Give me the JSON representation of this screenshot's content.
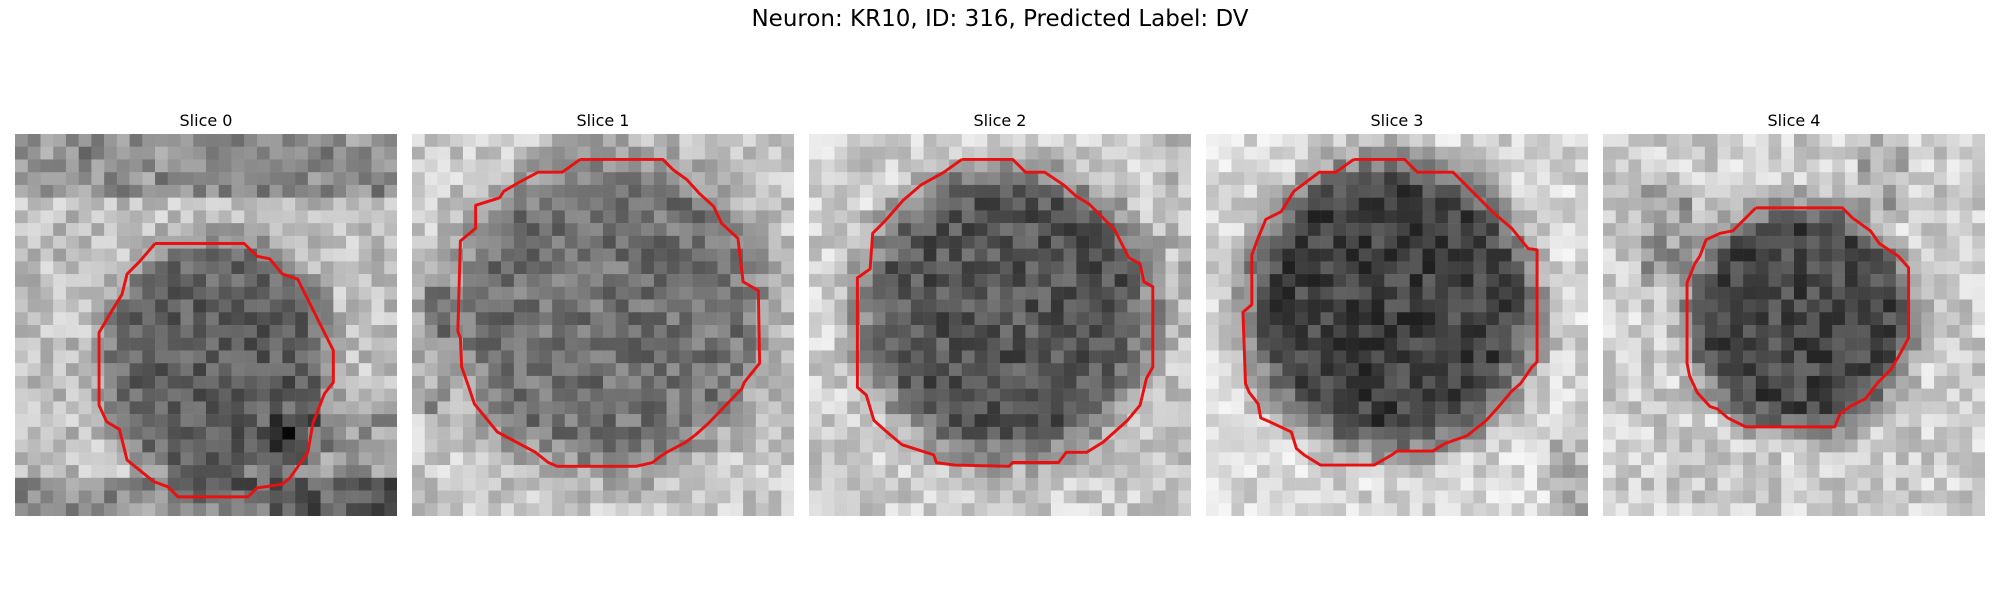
{
  "title": "Neuron: KR10, ID: 316, Predicted Label: DV",
  "outline_color": "#e81010",
  "colormap": "gray",
  "slices": [
    {
      "label": "Slice 0"
    },
    {
      "label": "Slice 1"
    },
    {
      "label": "Slice 2"
    },
    {
      "label": "Slice 3"
    },
    {
      "label": "Slice 4"
    }
  ]
}
